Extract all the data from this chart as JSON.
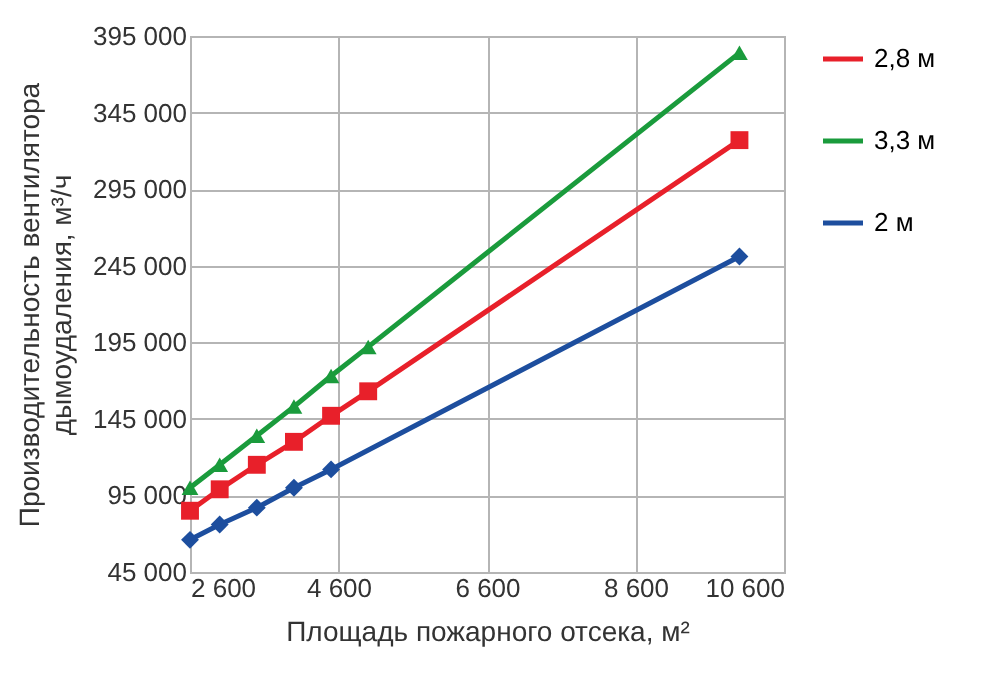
{
  "chart_data": {
    "type": "line",
    "xlabel": "Площадь пожарного отсека, м²",
    "ylabel": "Производительность вентилятора дымоудаления, м³/ч",
    "xlim": [
      2600,
      10600
    ],
    "xticks": [
      {
        "value": 2600,
        "label": "2 600"
      },
      {
        "value": 4600,
        "label": "4 600"
      },
      {
        "value": 6600,
        "label": "6 600"
      },
      {
        "value": 8600,
        "label": "8 600"
      },
      {
        "value": 10600,
        "label": "10 600"
      }
    ],
    "ylim": [
      45000,
      395000
    ],
    "yticks": [
      {
        "value": 45000,
        "label": "45 000"
      },
      {
        "value": 95000,
        "label": "95 000"
      },
      {
        "value": 145000,
        "label": "145 000"
      },
      {
        "value": 195000,
        "label": "195 000"
      },
      {
        "value": 245000,
        "label": "245 000"
      },
      {
        "value": 295000,
        "label": "295 000"
      },
      {
        "value": 345000,
        "label": "345 000"
      },
      {
        "value": 395000,
        "label": "395 000"
      }
    ],
    "grid": true,
    "legend": "right",
    "series": [
      {
        "name": "2,8 м",
        "color": "#e8202a",
        "marker": "square",
        "x": [
          2600,
          3000,
          3500,
          4000,
          4500,
          5000,
          10000
        ],
        "values": [
          85000,
          99000,
          115000,
          130000,
          147000,
          163000,
          327000
        ]
      },
      {
        "name": "3,3 м",
        "color": "#1a9b3c",
        "marker": "triangle",
        "x": [
          2600,
          3000,
          3500,
          4000,
          4500,
          5000,
          10000
        ],
        "values": [
          100000,
          115000,
          134000,
          153000,
          173000,
          192000,
          384000
        ]
      },
      {
        "name": "2 м",
        "color": "#1d4e9e",
        "marker": "diamond",
        "x": [
          2600,
          3000,
          3500,
          4000,
          4500,
          10000
        ],
        "values": [
          66000,
          76000,
          87000,
          100000,
          112000,
          251000
        ]
      }
    ]
  }
}
